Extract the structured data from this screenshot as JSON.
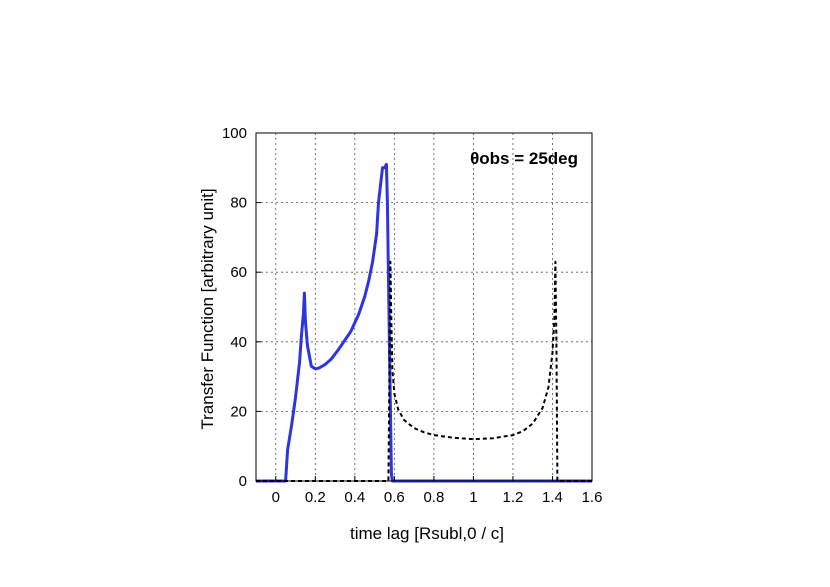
{
  "chart_data": {
    "type": "line",
    "xlabel": "time lag [Rsubl,0 / c]",
    "ylabel": "Transfer Function [arbitrary unit]",
    "annotation": "θobs = 25deg",
    "xlim": [
      -0.1,
      1.6
    ],
    "ylim": [
      0,
      100
    ],
    "x_ticks": [
      0,
      0.2,
      0.4,
      0.6,
      0.8,
      1,
      1.2,
      1.4,
      1.6
    ],
    "x_tick_labels": [
      "0",
      "0.2",
      "0.4",
      "0.6",
      "0.8",
      "1",
      "1.2",
      "1.4",
      "1.6"
    ],
    "y_ticks": [
      0,
      20,
      40,
      60,
      80,
      100
    ],
    "y_tick_labels": [
      "0",
      "20",
      "40",
      "60",
      "80",
      "100"
    ],
    "grid": true,
    "series": [
      {
        "style": "solid",
        "color": "#2b35e0",
        "x": [
          -0.1,
          0.05,
          0.06,
          0.08,
          0.1,
          0.12,
          0.13,
          0.14,
          0.145,
          0.15,
          0.16,
          0.18,
          0.2,
          0.22,
          0.25,
          0.28,
          0.3,
          0.32,
          0.35,
          0.38,
          0.4,
          0.42,
          0.45,
          0.47,
          0.49,
          0.51,
          0.52,
          0.54,
          0.55,
          0.56,
          0.565,
          0.575,
          0.585,
          0.59,
          0.6,
          1.6
        ],
        "y": [
          0,
          0,
          9,
          16,
          24,
          34,
          42,
          48,
          54,
          46,
          39,
          33,
          32.2,
          32.5,
          33.5,
          35,
          36.5,
          38,
          40.5,
          43,
          45.5,
          48,
          53,
          57.5,
          63,
          71,
          80,
          90,
          90,
          91,
          80,
          40,
          2,
          0,
          0,
          0
        ]
      },
      {
        "style": "dashed",
        "color": "#000000",
        "x": [
          -0.1,
          0.57,
          0.575,
          0.58,
          0.585,
          0.59,
          0.6,
          0.62,
          0.65,
          0.7,
          0.75,
          0.8,
          0.9,
          1.0,
          1.1,
          1.2,
          1.25,
          1.3,
          1.35,
          1.38,
          1.4,
          1.41,
          1.415,
          1.42,
          1.425,
          1.43,
          1.6
        ],
        "y": [
          0,
          0,
          30,
          63,
          45,
          32,
          25,
          20.5,
          17.5,
          15.2,
          14,
          13.2,
          12.4,
          12,
          12.3,
          13.2,
          14.3,
          16.5,
          21,
          27,
          37,
          47,
          63,
          40,
          0,
          0,
          0
        ]
      }
    ]
  }
}
